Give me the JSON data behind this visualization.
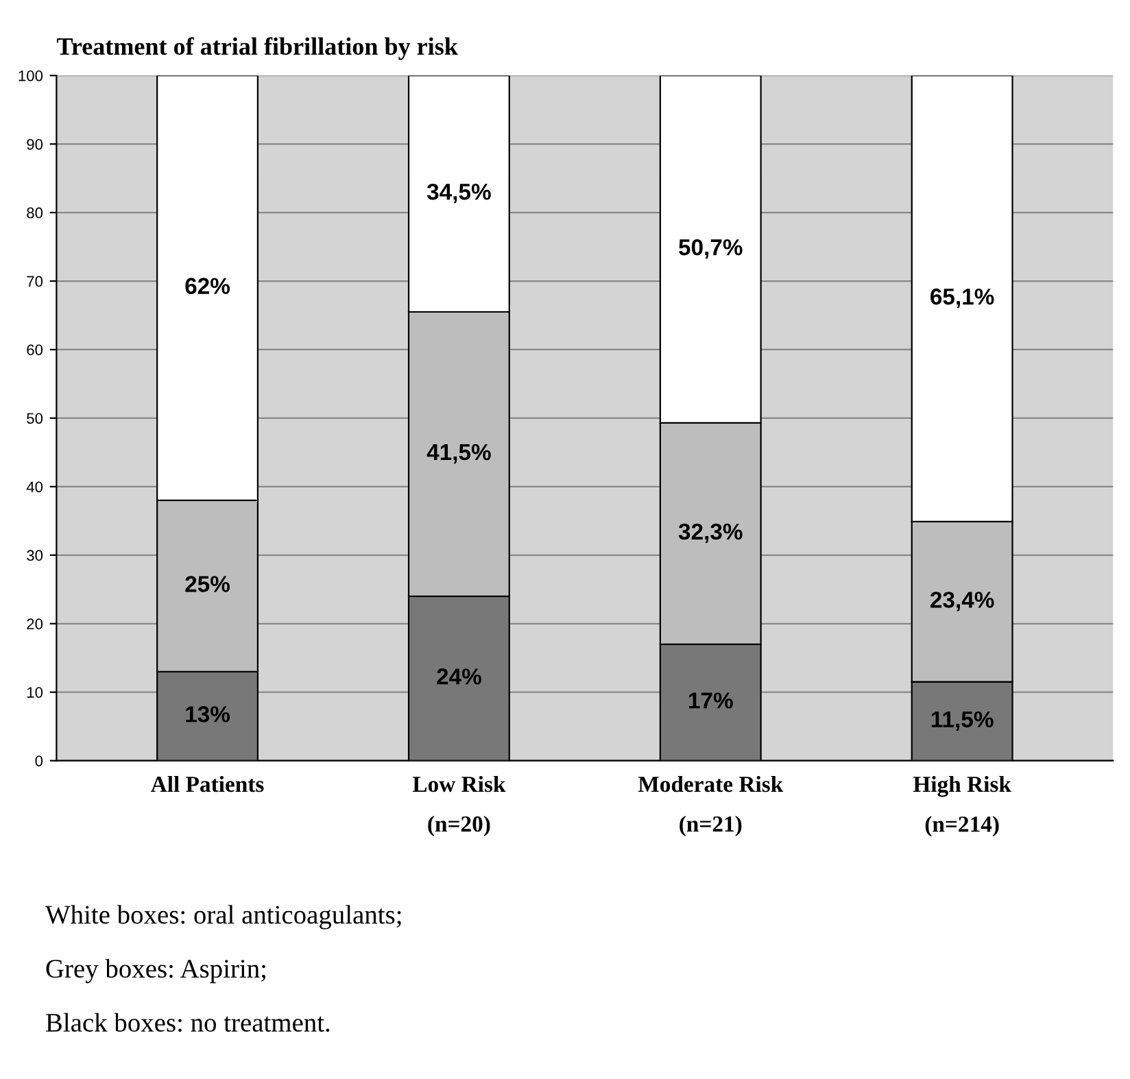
{
  "chart_data": {
    "type": "bar",
    "title": "Treatment of atrial fibrillation by risk",
    "categories": [
      "All Patients",
      "Low Risk\n(n=20)",
      "Moderate Risk\n(n=21)",
      "High Risk\n(n=214)"
    ],
    "stacked": true,
    "series": [
      {
        "color": "#787878",
        "values": [
          13,
          24,
          17,
          11.5
        ],
        "value_labels": [
          "13%",
          "24%",
          "17%",
          "11,5%"
        ]
      },
      {
        "color": "#bdbdbd",
        "values": [
          25,
          41.5,
          32.3,
          23.4
        ],
        "value_labels": [
          "25%",
          "41,5%",
          "32,3%",
          "23,4%"
        ]
      },
      {
        "color": "#ffffff",
        "values": [
          62,
          34.5,
          50.7,
          65.1
        ],
        "value_labels": [
          "62%",
          "34,5%",
          "50,7%",
          "65,1%"
        ]
      }
    ],
    "ylim": [
      0,
      100
    ],
    "yticks": [
      0,
      10,
      20,
      30,
      40,
      50,
      60,
      70,
      80,
      90,
      100
    ],
    "grid": "y",
    "annotations": [
      "White boxes: oral anticoagulants;",
      "Grey boxes: Aspirin;",
      "Black boxes: no treatment."
    ]
  }
}
